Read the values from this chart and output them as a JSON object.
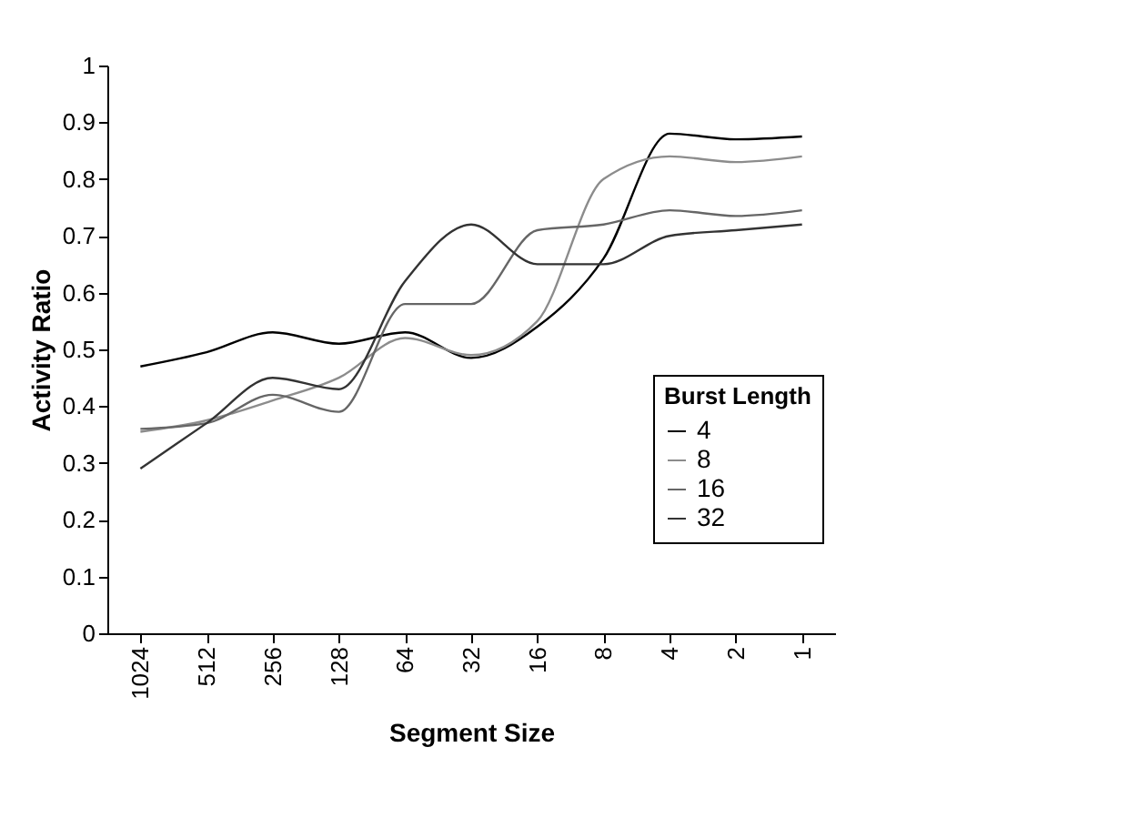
{
  "chart_data": {
    "type": "line",
    "xlabel": "Segment Size",
    "ylabel": "Activity Ratio",
    "legend_title": "Burst Length",
    "legend": "right",
    "grid": false,
    "marker": "none",
    "line_style": "solid",
    "categories": [
      "1024",
      "512",
      "256",
      "128",
      "64",
      "32",
      "16",
      "8",
      "4",
      "2",
      "1"
    ],
    "ylim": [
      0,
      1
    ],
    "yticks": [
      0,
      0.1,
      0.2,
      0.3,
      0.4,
      0.5,
      0.6,
      0.7,
      0.8,
      0.9,
      1
    ],
    "series": [
      {
        "name": "4",
        "color": "#000000",
        "values": [
          0.47,
          0.495,
          0.53,
          0.51,
          0.53,
          0.485,
          0.54,
          0.66,
          0.88,
          0.87,
          0.875
        ]
      },
      {
        "name": "8",
        "color": "#8c8c8c",
        "values": [
          0.355,
          0.375,
          0.41,
          0.45,
          0.52,
          0.49,
          0.55,
          0.8,
          0.84,
          0.83,
          0.84
        ]
      },
      {
        "name": "16",
        "color": "#666666",
        "values": [
          0.36,
          0.37,
          0.42,
          0.39,
          0.58,
          0.58,
          0.71,
          0.72,
          0.745,
          0.735,
          0.745
        ]
      },
      {
        "name": "32",
        "color": "#333333",
        "values": [
          0.29,
          0.37,
          0.45,
          0.43,
          0.62,
          0.72,
          0.65,
          0.65,
          0.7,
          0.71,
          0.72
        ]
      }
    ]
  }
}
